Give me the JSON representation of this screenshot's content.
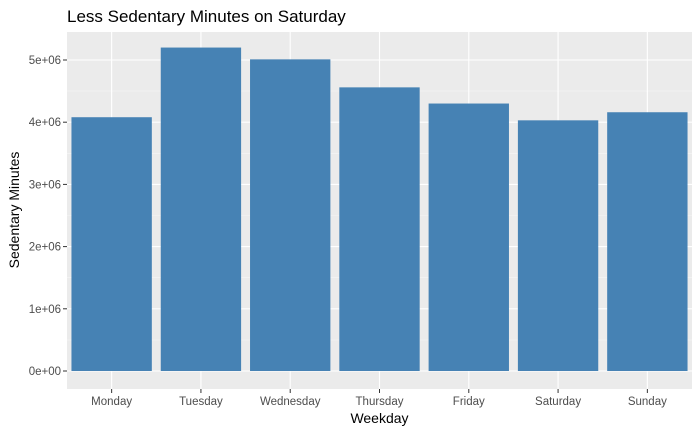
{
  "chart_data": {
    "type": "bar",
    "title": "Less Sedentary Minutes on Saturday",
    "xlabel": "Weekday",
    "ylabel": "Sedentary Minutes",
    "categories": [
      "Monday",
      "Tuesday",
      "Wednesday",
      "Thursday",
      "Friday",
      "Saturday",
      "Sunday"
    ],
    "values": [
      4080000,
      5200000,
      5010000,
      4560000,
      4300000,
      4030000,
      4160000
    ],
    "ylim": [
      0,
      5450000
    ],
    "yticks": [
      0,
      1000000,
      2000000,
      3000000,
      4000000,
      5000000
    ],
    "ytick_labels": [
      "0e+00",
      "1e+06",
      "2e+06",
      "3e+06",
      "4e+06",
      "5e+06"
    ],
    "grid": true,
    "legend": "none",
    "colors": {
      "bar": "#4682b4",
      "panel": "#ebebeb",
      "grid_major": "#ffffff",
      "grid_minor": "#f5f5f5",
      "tick": "#333333"
    }
  }
}
